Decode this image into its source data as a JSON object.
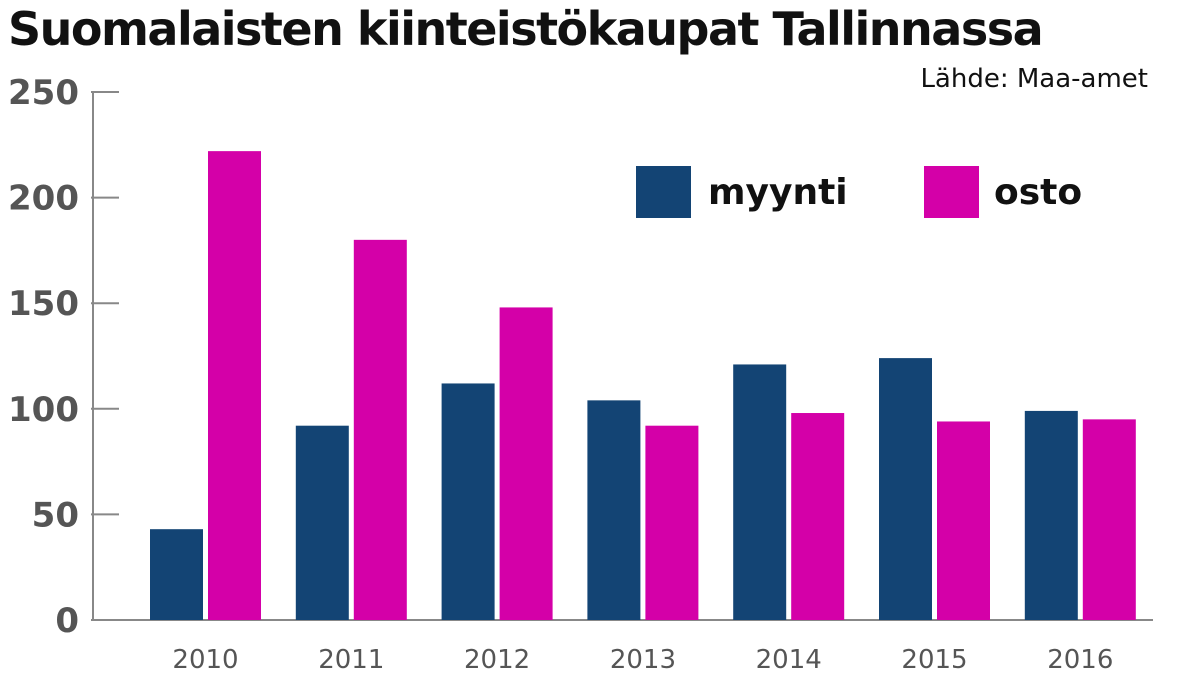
{
  "chart_data": {
    "type": "bar",
    "title": "Suomalaisten kiinteistökaupat Tallinnassa",
    "source": "Lähde: Maa-amet",
    "xlabel": "",
    "ylabel": "",
    "categories": [
      "2010",
      "2011",
      "2012",
      "2013",
      "2014",
      "2015",
      "2016"
    ],
    "series": [
      {
        "name": "myynti",
        "color": "#134474",
        "values": [
          43,
          92,
          112,
          104,
          121,
          124,
          99
        ]
      },
      {
        "name": "osto",
        "color": "#d400a8",
        "values": [
          222,
          180,
          148,
          92,
          98,
          94,
          95
        ]
      }
    ],
    "ylim": [
      0,
      250
    ],
    "yticks": [
      "0",
      "50",
      "100",
      "150",
      "200",
      "250"
    ],
    "grid": false,
    "legend": "top-right"
  }
}
